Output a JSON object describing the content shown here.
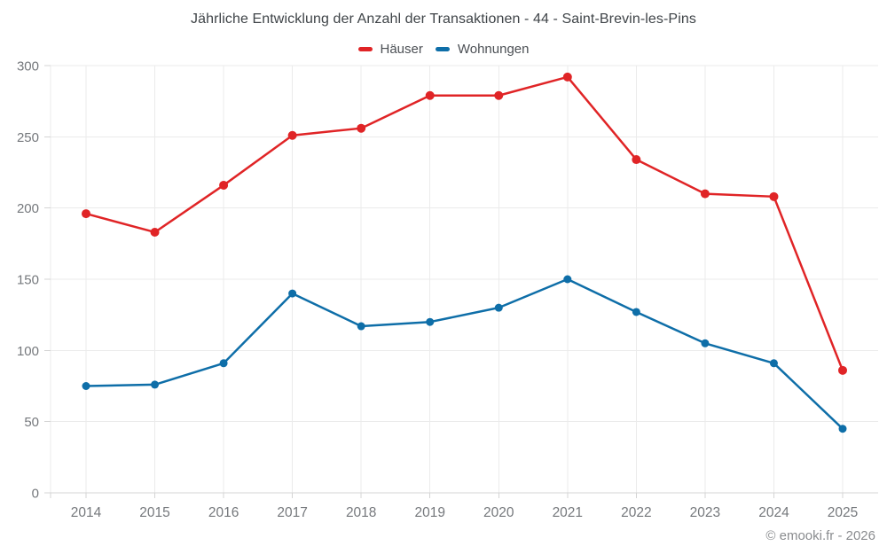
{
  "title": "Jährliche Entwicklung der Anzahl der Transaktionen - 44 - Saint-Brevin-les-Pins",
  "footer": "© emooki.fr - 2026",
  "chart_data": {
    "type": "line",
    "title": "Jährliche Entwicklung der Anzahl der Transaktionen - 44 - Saint-Brevin-les-Pins",
    "x": [
      "2014",
      "2015",
      "2016",
      "2017",
      "2018",
      "2019",
      "2020",
      "2021",
      "2022",
      "2023",
      "2024",
      "2025"
    ],
    "series": [
      {
        "name": "Häuser",
        "color": "#e02426",
        "values": [
          196,
          183,
          216,
          251,
          256,
          279,
          279,
          292,
          234,
          210,
          208,
          86
        ]
      },
      {
        "name": "Wohnungen",
        "color": "#0e6ea8",
        "values": [
          75,
          76,
          91,
          140,
          117,
          120,
          130,
          150,
          127,
          105,
          91,
          45
        ]
      }
    ],
    "xlabel": "",
    "ylabel": "",
    "ylim": [
      0,
      300
    ],
    "ytick_step": 50,
    "grid": true,
    "legend_position": "top",
    "axis_text_color": "#75787c",
    "grid_color": "#ebebeb",
    "axis_line_color": "#d4d4d4"
  }
}
